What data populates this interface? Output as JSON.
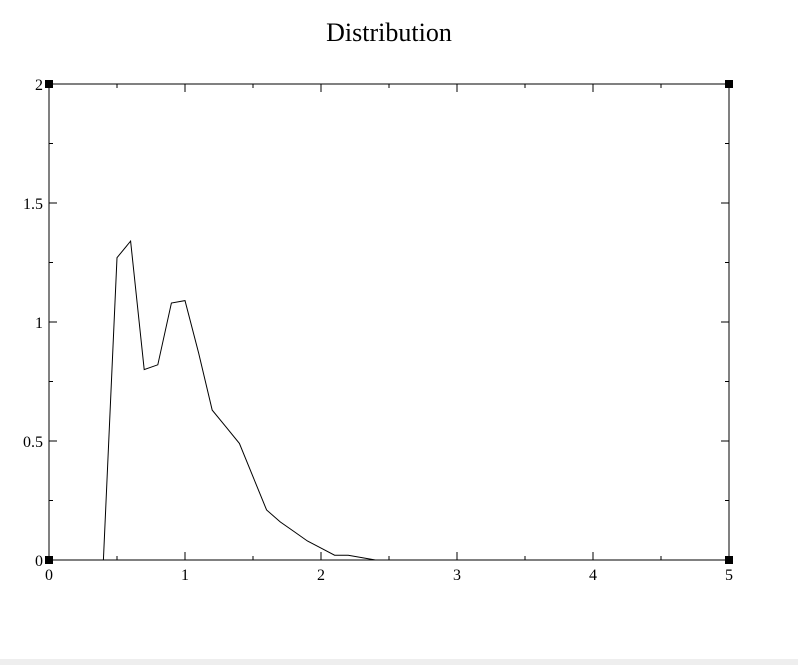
{
  "chart_data": {
    "type": "line",
    "title": "Distribution",
    "xlabel": "",
    "ylabel": "",
    "xlim": [
      0,
      5
    ],
    "ylim": [
      0,
      2
    ],
    "x_ticks": [
      0,
      1,
      2,
      3,
      4,
      5
    ],
    "x_tick_labels": [
      "0",
      "1",
      "2",
      "3",
      "4",
      "5"
    ],
    "y_ticks": [
      0,
      0.5,
      1,
      1.5,
      2
    ],
    "y_tick_labels": [
      "0",
      "0.5",
      "1",
      "1.5",
      "2"
    ],
    "x_minor_step": 0.5,
    "y_minor_step": 0.25,
    "grid": false,
    "legend": "none",
    "line_color": "#000000",
    "series": [
      {
        "x": [
          0.4,
          0.5,
          0.6,
          0.7,
          0.8,
          0.9,
          1.0,
          1.1,
          1.2,
          1.3,
          1.4,
          1.5,
          1.6,
          1.7,
          1.8,
          1.9,
          2.0,
          2.1,
          2.2,
          2.3,
          2.4,
          2.5,
          2.6,
          2.7,
          2.8
        ],
        "y": [
          0,
          1.27,
          1.34,
          0.8,
          0.82,
          1.08,
          1.09,
          0.87,
          0.63,
          0.56,
          0.49,
          0.35,
          0.21,
          0.16,
          0.12,
          0.08,
          0.05,
          0.02,
          0.02,
          0.01,
          0.0,
          0.0,
          0.0,
          0.0,
          0.0
        ]
      }
    ]
  }
}
